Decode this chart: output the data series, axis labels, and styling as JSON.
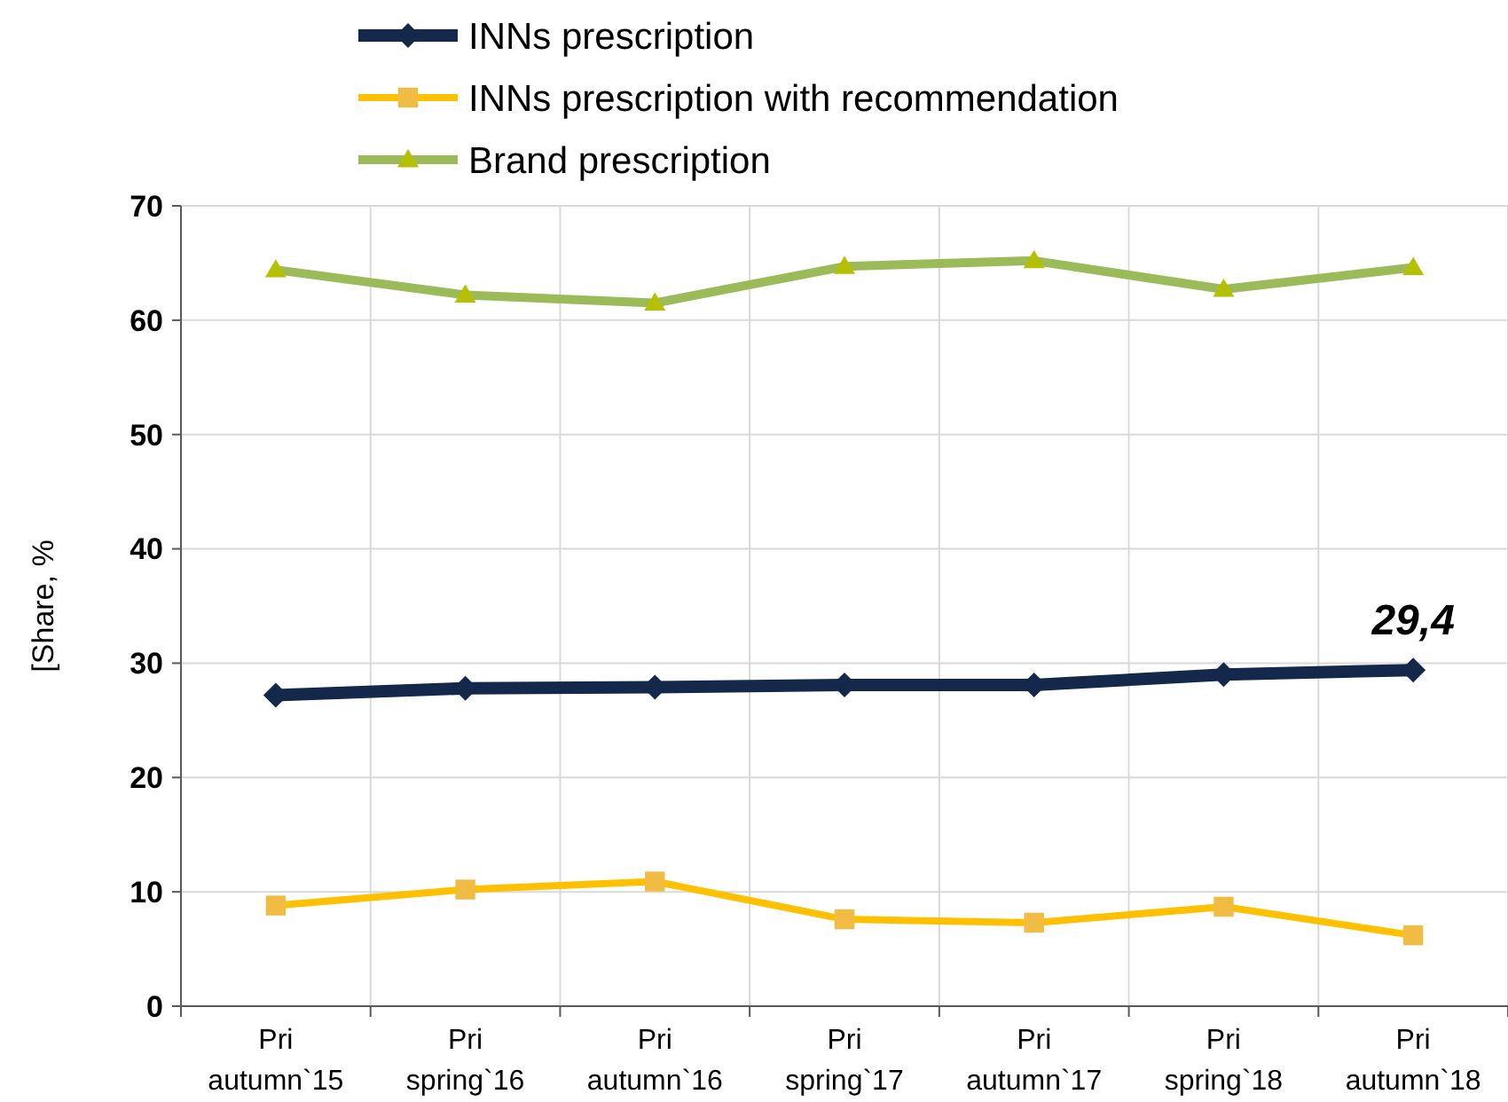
{
  "chart_data": {
    "type": "line",
    "ylabel": "[Share, %",
    "categories": [
      "Pri autumn`15",
      "Pri spring`16",
      "Pri autumn`16",
      "Pri spring`17",
      "Pri autumn`17",
      "Pri spring`18",
      "Pri autumn`18"
    ],
    "series": [
      {
        "name": "INNs prescription",
        "color": "#14284b",
        "marker": "diamond",
        "values": [
          27.2,
          27.8,
          27.9,
          28.1,
          28.1,
          29.0,
          29.4
        ]
      },
      {
        "name": "INNs prescription with recommendation",
        "color": "#ffc000",
        "marker": "square",
        "values": [
          8.8,
          10.2,
          10.9,
          7.6,
          7.3,
          8.7,
          6.2
        ]
      },
      {
        "name": "Brand prescription",
        "color": "#9bbb59",
        "marker": "triangle",
        "values": [
          64.4,
          62.2,
          61.5,
          64.7,
          65.2,
          62.7,
          64.6
        ]
      }
    ],
    "ylim": [
      0,
      70
    ],
    "yticks": [
      0,
      10,
      20,
      30,
      40,
      50,
      60,
      70
    ],
    "grid": true,
    "legend": "top",
    "annotations": [
      {
        "text": "29,4",
        "x": "Pri autumn`18",
        "y": 29.4
      }
    ]
  }
}
